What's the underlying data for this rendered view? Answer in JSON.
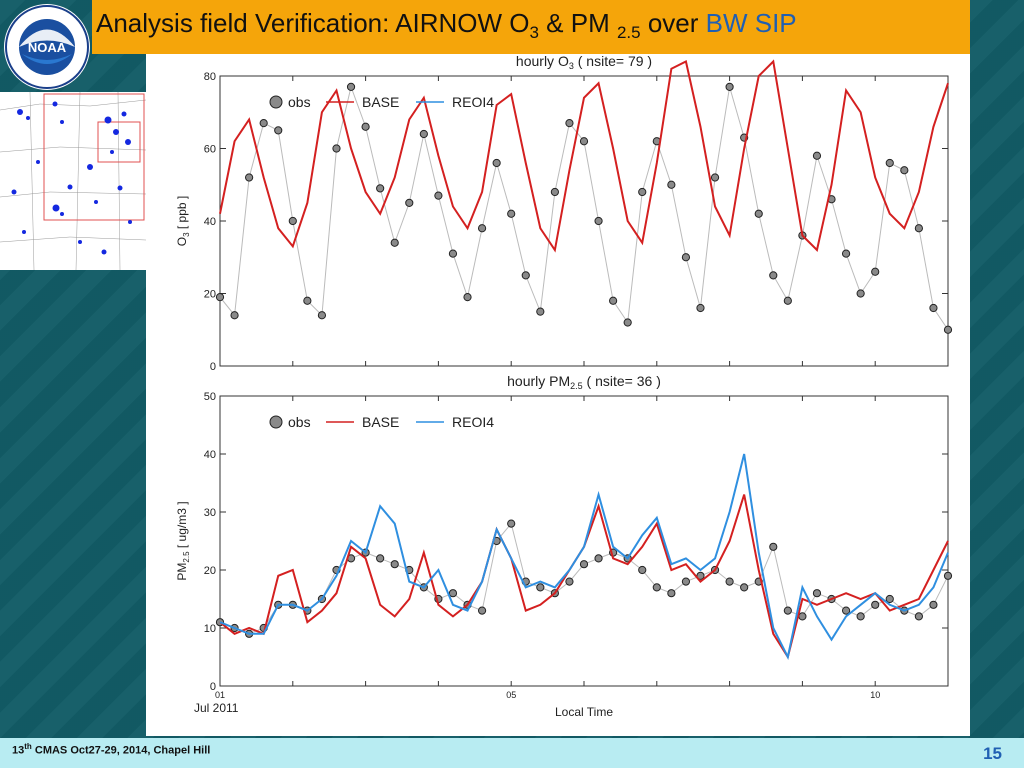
{
  "slide": {
    "title_main": "Analysis field Verification: AIRNOW O",
    "title_o3_sub": "3",
    "title_amp": " & PM ",
    "title_pm_sub": "2.5",
    "title_over": " over ",
    "title_region": "BW SIP",
    "footer_prefix": "13",
    "footer_sup": "th",
    "footer_rest": " CMAS Oct27-29, 2014, Chapel Hill",
    "page_number": "15",
    "logo_text": "NOAA"
  },
  "colors": {
    "base": "#d42020",
    "reoi4": "#2f8fe0",
    "obs_fill": "#8a8a8a",
    "title_bar": "#f5a50a",
    "title_highlight": "#1f5fb3",
    "footer": "#b8ecf2"
  },
  "x_axis": {
    "ticks": [
      {
        "label": "01",
        "day": 1
      },
      {
        "label": "05",
        "day": 5
      },
      {
        "label": "10",
        "day": 10
      }
    ],
    "start_label": "Jul 2011",
    "title": "Local Time",
    "range": [
      1,
      11
    ]
  },
  "chart_data": [
    {
      "type": "line",
      "title": "hourly O",
      "title_sub": "3",
      "title_rest": " ( nsite= 79 )",
      "ylabel": "O",
      "ylabel_sub": "3",
      "ylabel_rest": " [ ppb ]",
      "ylim": [
        0,
        80
      ],
      "yticks": [
        0,
        20,
        40,
        60,
        80
      ],
      "legend": [
        "obs",
        "BASE",
        "REOI4"
      ],
      "legend_position": "top-left",
      "series": [
        {
          "name": "obs",
          "style": "markers",
          "x": [
            1.0,
            1.2,
            1.4,
            1.6,
            1.8,
            2.0,
            2.2,
            2.4,
            2.6,
            2.8,
            3.0,
            3.2,
            3.4,
            3.6,
            3.8,
            4.0,
            4.2,
            4.4,
            4.6,
            4.8,
            5.0,
            5.2,
            5.4,
            5.6,
            5.8,
            6.0,
            6.2,
            6.4,
            6.6,
            6.8,
            7.0,
            7.2,
            7.4,
            7.6,
            7.8,
            8.0,
            8.2,
            8.4,
            8.6,
            8.8,
            9.0,
            9.2,
            9.4,
            9.6,
            9.8,
            10.0,
            10.2,
            10.4,
            10.6,
            10.8,
            11.0
          ],
          "values": [
            19,
            14,
            52,
            67,
            65,
            40,
            18,
            14,
            60,
            77,
            66,
            49,
            34,
            45,
            64,
            47,
            31,
            19,
            38,
            56,
            42,
            25,
            15,
            48,
            67,
            62,
            40,
            18,
            12,
            48,
            62,
            50,
            30,
            16,
            52,
            77,
            63,
            42,
            25,
            18,
            36,
            58,
            46,
            31,
            20,
            26,
            56,
            54,
            38,
            16,
            10
          ]
        },
        {
          "name": "BASE",
          "style": "line",
          "x": [
            1.0,
            1.2,
            1.4,
            1.6,
            1.8,
            2.0,
            2.2,
            2.4,
            2.6,
            2.8,
            3.0,
            3.2,
            3.4,
            3.6,
            3.8,
            4.0,
            4.2,
            4.4,
            4.6,
            4.8,
            5.0,
            5.2,
            5.4,
            5.6,
            5.8,
            6.0,
            6.2,
            6.4,
            6.6,
            6.8,
            7.0,
            7.2,
            7.4,
            7.6,
            7.8,
            8.0,
            8.2,
            8.4,
            8.6,
            8.8,
            9.0,
            9.2,
            9.4,
            9.6,
            9.8,
            10.0,
            10.2,
            10.4,
            10.6,
            10.8,
            11.0
          ],
          "values": [
            42,
            62,
            68,
            52,
            38,
            33,
            45,
            70,
            76,
            60,
            48,
            42,
            52,
            68,
            74,
            58,
            44,
            38,
            48,
            72,
            75,
            56,
            38,
            32,
            54,
            74,
            78,
            60,
            40,
            34,
            56,
            82,
            84,
            66,
            44,
            36,
            60,
            80,
            84,
            60,
            36,
            32,
            50,
            76,
            70,
            52,
            42,
            38,
            48,
            66,
            78
          ]
        },
        {
          "name": "REOI4",
          "style": "line",
          "values": []
        }
      ]
    },
    {
      "type": "line",
      "title": "hourly PM",
      "title_sub": "2.5",
      "title_rest": " ( nsite= 36 )",
      "ylabel": "PM",
      "ylabel_sub": "2.5",
      "ylabel_rest": " [ ug/m3 ]",
      "ylim": [
        0,
        50
      ],
      "yticks": [
        0,
        10,
        20,
        30,
        40,
        50
      ],
      "legend": [
        "obs",
        "BASE",
        "REOI4"
      ],
      "legend_position": "top-left",
      "series": [
        {
          "name": "obs",
          "style": "markers",
          "x": [
            1.0,
            1.2,
            1.4,
            1.6,
            1.8,
            2.0,
            2.2,
            2.4,
            2.6,
            2.8,
            3.0,
            3.2,
            3.4,
            3.6,
            3.8,
            4.0,
            4.2,
            4.4,
            4.6,
            4.8,
            5.0,
            5.2,
            5.4,
            5.6,
            5.8,
            6.0,
            6.2,
            6.4,
            6.6,
            6.8,
            7.0,
            7.2,
            7.4,
            7.6,
            7.8,
            8.0,
            8.2,
            8.4,
            8.6,
            8.8,
            9.0,
            9.2,
            9.4,
            9.6,
            9.8,
            10.0,
            10.2,
            10.4,
            10.6,
            10.8,
            11.0
          ],
          "values": [
            11,
            10,
            9,
            10,
            14,
            14,
            13,
            15,
            20,
            22,
            23,
            22,
            21,
            20,
            17,
            15,
            16,
            14,
            13,
            25,
            28,
            18,
            17,
            16,
            18,
            21,
            22,
            23,
            22,
            20,
            17,
            16,
            18,
            19,
            20,
            18,
            17,
            18,
            24,
            13,
            12,
            16,
            15,
            13,
            12,
            14,
            15,
            13,
            12,
            14,
            19
          ]
        },
        {
          "name": "BASE",
          "style": "line",
          "x": [
            1.0,
            1.2,
            1.4,
            1.6,
            1.8,
            2.0,
            2.2,
            2.4,
            2.6,
            2.8,
            3.0,
            3.2,
            3.4,
            3.6,
            3.8,
            4.0,
            4.2,
            4.4,
            4.6,
            4.8,
            5.0,
            5.2,
            5.4,
            5.6,
            5.8,
            6.0,
            6.2,
            6.4,
            6.6,
            6.8,
            7.0,
            7.2,
            7.4,
            7.6,
            7.8,
            8.0,
            8.2,
            8.4,
            8.6,
            8.8,
            9.0,
            9.2,
            9.4,
            9.6,
            9.8,
            10.0,
            10.2,
            10.4,
            10.6,
            10.8,
            11.0
          ],
          "values": [
            11,
            9,
            10,
            9,
            19,
            20,
            11,
            13,
            16,
            24,
            22,
            14,
            12,
            15,
            23,
            14,
            12,
            14,
            18,
            27,
            22,
            13,
            14,
            16,
            20,
            24,
            31,
            22,
            21,
            24,
            28,
            20,
            21,
            18,
            20,
            25,
            33,
            20,
            9,
            5,
            15,
            14,
            15,
            16,
            15,
            16,
            13,
            14,
            15,
            20,
            25
          ]
        },
        {
          "name": "REOI4",
          "style": "line",
          "x": [
            1.0,
            1.2,
            1.4,
            1.6,
            1.8,
            2.0,
            2.2,
            2.4,
            2.6,
            2.8,
            3.0,
            3.2,
            3.4,
            3.6,
            3.8,
            4.0,
            4.2,
            4.4,
            4.6,
            4.8,
            5.0,
            5.2,
            5.4,
            5.6,
            5.8,
            6.0,
            6.2,
            6.4,
            6.6,
            6.8,
            7.0,
            7.2,
            7.4,
            7.6,
            7.8,
            8.0,
            8.2,
            8.4,
            8.6,
            8.8,
            9.0,
            9.2,
            9.4,
            9.6,
            9.8,
            10.0,
            10.2,
            10.4,
            10.6,
            10.8,
            11.0
          ],
          "values": [
            11,
            10,
            9,
            9,
            14,
            14,
            13,
            15,
            19,
            25,
            23,
            31,
            28,
            18,
            17,
            20,
            14,
            13,
            18,
            27,
            22,
            17,
            18,
            17,
            20,
            24,
            33,
            24,
            22,
            26,
            29,
            21,
            22,
            20,
            22,
            30,
            40,
            23,
            10,
            5,
            17,
            12,
            8,
            12,
            14,
            16,
            14,
            13,
            14,
            17,
            23
          ]
        }
      ]
    }
  ]
}
